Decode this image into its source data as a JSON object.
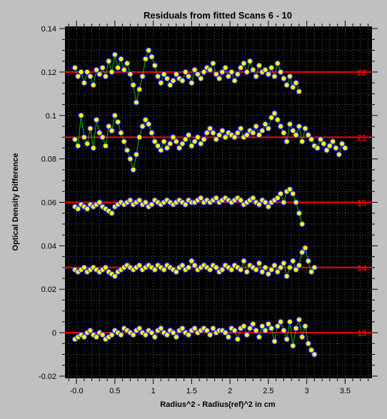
{
  "chart_data": {
    "type": "scatter",
    "title": "Residuals from fitted Scans 6 - 10",
    "xlabel": "Radius^2 - Radius(ref)^2 in cm",
    "ylabel": "Optical Density Difference",
    "xlim": [
      -0.15,
      3.85
    ],
    "ylim": [
      -0.021,
      0.141
    ],
    "x_ticks": [
      -0.0,
      0.5,
      1,
      1.5,
      2,
      2.5,
      3,
      3.5
    ],
    "x_tick_labels": [
      "-0.0",
      "0.5",
      "1",
      "1.5",
      "2",
      "2.5",
      "3",
      "3.5"
    ],
    "y_ticks": [
      -0.02,
      0,
      0.02,
      0.04,
      0.06,
      0.08,
      0.1,
      0.12,
      0.14
    ],
    "y_tick_labels": [
      "-0.02",
      "0",
      "0.02",
      "0.04",
      "0.06",
      "0.08",
      "0.1",
      "0.12",
      "0.14"
    ],
    "grid": true,
    "colors": {
      "background": "#000000",
      "frame": "#c0c0c0",
      "grid": "#9a9a9a",
      "baseline": "#ff0000",
      "label": "#e00000",
      "marker_fill": "#ffff00",
      "marker_edge": "#3030ff",
      "connector": "#00c000"
    },
    "series": [
      {
        "label": "13",
        "baseline": 0.0,
        "label_pos": [
          3.78,
          0.0
        ],
        "x": [
          -0.02,
          0.02,
          0.06,
          0.1,
          0.14,
          0.18,
          0.22,
          0.26,
          0.3,
          0.34,
          0.38,
          0.42,
          0.46,
          0.5,
          0.54,
          0.58,
          0.62,
          0.66,
          0.7,
          0.74,
          0.78,
          0.82,
          0.86,
          0.9,
          0.94,
          0.98,
          1.02,
          1.06,
          1.1,
          1.14,
          1.18,
          1.22,
          1.26,
          1.3,
          1.34,
          1.38,
          1.42,
          1.46,
          1.5,
          1.54,
          1.58,
          1.62,
          1.66,
          1.7,
          1.74,
          1.78,
          1.82,
          1.86,
          1.9,
          1.94,
          1.98,
          2.02,
          2.06,
          2.1,
          2.14,
          2.18,
          2.22,
          2.26,
          2.3,
          2.34,
          2.38,
          2.42,
          2.46,
          2.5,
          2.54,
          2.58,
          2.62,
          2.66,
          2.7,
          2.74,
          2.78,
          2.82,
          2.86,
          2.9,
          2.94,
          2.98,
          3.02,
          3.06,
          3.1
        ],
        "y": [
          -0.003,
          -0.002,
          -0.001,
          -0.002,
          0.0,
          0.001,
          -0.001,
          -0.002,
          0.0,
          -0.001,
          -0.003,
          -0.002,
          -0.001,
          0.001,
          0.0,
          -0.001,
          0.002,
          0.001,
          0.0,
          -0.001,
          0.001,
          0.002,
          0.0,
          -0.001,
          0.001,
          0.0,
          -0.002,
          0.001,
          0.002,
          0.0,
          -0.001,
          0.001,
          0.0,
          -0.002,
          0.001,
          0.002,
          0.0,
          -0.001,
          0.001,
          0.002,
          0.0,
          0.001,
          0.002,
          0.001,
          -0.001,
          0.002,
          0.0,
          0.001,
          0.001,
          0.0,
          -0.002,
          0.002,
          0.001,
          -0.003,
          0.002,
          0.003,
          -0.001,
          0.002,
          0.004,
          0.001,
          -0.002,
          0.003,
          0.001,
          0.004,
          0.002,
          -0.004,
          0.003,
          0.005,
          0.001,
          -0.003,
          0.005,
          -0.006,
          0.002,
          0.006,
          -0.002,
          0.003,
          -0.005,
          -0.008,
          -0.01
        ]
      },
      {
        "label": "14",
        "baseline": 0.03,
        "label_pos": [
          3.78,
          0.03
        ],
        "x": [
          -0.02,
          0.02,
          0.06,
          0.1,
          0.14,
          0.18,
          0.22,
          0.26,
          0.3,
          0.34,
          0.38,
          0.42,
          0.46,
          0.5,
          0.54,
          0.58,
          0.62,
          0.66,
          0.7,
          0.74,
          0.78,
          0.82,
          0.86,
          0.9,
          0.94,
          0.98,
          1.02,
          1.06,
          1.1,
          1.14,
          1.18,
          1.22,
          1.26,
          1.3,
          1.34,
          1.38,
          1.42,
          1.46,
          1.5,
          1.54,
          1.58,
          1.62,
          1.66,
          1.7,
          1.74,
          1.78,
          1.82,
          1.86,
          1.9,
          1.94,
          1.98,
          2.02,
          2.06,
          2.1,
          2.14,
          2.18,
          2.22,
          2.26,
          2.3,
          2.34,
          2.38,
          2.42,
          2.46,
          2.5,
          2.54,
          2.58,
          2.62,
          2.66,
          2.7,
          2.74,
          2.78,
          2.82,
          2.86,
          2.9,
          2.94,
          2.98,
          3.02,
          3.06,
          3.1
        ],
        "y": [
          0.029,
          0.028,
          0.029,
          0.03,
          0.028,
          0.029,
          0.03,
          0.029,
          0.028,
          0.029,
          0.03,
          0.028,
          0.027,
          0.026,
          0.028,
          0.029,
          0.03,
          0.031,
          0.03,
          0.029,
          0.03,
          0.031,
          0.029,
          0.03,
          0.031,
          0.03,
          0.029,
          0.031,
          0.03,
          0.029,
          0.031,
          0.03,
          0.029,
          0.028,
          0.03,
          0.031,
          0.029,
          0.03,
          0.033,
          0.031,
          0.029,
          0.03,
          0.031,
          0.03,
          0.029,
          0.031,
          0.03,
          0.028,
          0.029,
          0.031,
          0.03,
          0.029,
          0.031,
          0.03,
          0.029,
          0.033,
          0.028,
          0.031,
          0.03,
          0.029,
          0.032,
          0.028,
          0.03,
          0.027,
          0.029,
          0.031,
          0.028,
          0.03,
          0.032,
          0.026,
          0.03,
          0.033,
          0.029,
          0.031,
          0.037,
          0.039,
          0.033,
          0.028,
          0.03
        ]
      },
      {
        "label": "15",
        "baseline": 0.06,
        "label_pos": [
          3.78,
          0.06
        ],
        "x": [
          -0.02,
          0.02,
          0.06,
          0.1,
          0.14,
          0.18,
          0.22,
          0.26,
          0.3,
          0.34,
          0.38,
          0.42,
          0.46,
          0.5,
          0.54,
          0.58,
          0.62,
          0.66,
          0.7,
          0.74,
          0.78,
          0.82,
          0.86,
          0.9,
          0.94,
          0.98,
          1.02,
          1.06,
          1.1,
          1.14,
          1.18,
          1.22,
          1.26,
          1.3,
          1.34,
          1.38,
          1.42,
          1.46,
          1.5,
          1.54,
          1.58,
          1.62,
          1.66,
          1.7,
          1.74,
          1.78,
          1.82,
          1.86,
          1.9,
          1.94,
          1.98,
          2.02,
          2.06,
          2.1,
          2.14,
          2.18,
          2.22,
          2.26,
          2.3,
          2.34,
          2.38,
          2.42,
          2.46,
          2.5,
          2.54,
          2.58,
          2.62,
          2.66,
          2.7,
          2.74,
          2.78,
          2.82,
          2.86,
          2.9,
          2.94
        ],
        "y": [
          0.058,
          0.057,
          0.059,
          0.058,
          0.057,
          0.059,
          0.058,
          0.059,
          0.06,
          0.058,
          0.057,
          0.056,
          0.055,
          0.058,
          0.059,
          0.06,
          0.059,
          0.06,
          0.061,
          0.059,
          0.06,
          0.061,
          0.059,
          0.06,
          0.058,
          0.059,
          0.061,
          0.06,
          0.059,
          0.06,
          0.061,
          0.06,
          0.059,
          0.06,
          0.061,
          0.06,
          0.059,
          0.061,
          0.06,
          0.06,
          0.061,
          0.062,
          0.06,
          0.061,
          0.06,
          0.061,
          0.062,
          0.06,
          0.061,
          0.062,
          0.061,
          0.06,
          0.061,
          0.062,
          0.061,
          0.059,
          0.06,
          0.061,
          0.062,
          0.06,
          0.059,
          0.061,
          0.06,
          0.058,
          0.06,
          0.061,
          0.062,
          0.064,
          0.06,
          0.065,
          0.066,
          0.064,
          0.06,
          0.055,
          0.05
        ]
      },
      {
        "label": "21",
        "baseline": 0.09,
        "label_pos": [
          3.78,
          0.09
        ],
        "x": [
          -0.02,
          0.02,
          0.06,
          0.1,
          0.14,
          0.18,
          0.22,
          0.26,
          0.3,
          0.34,
          0.38,
          0.42,
          0.46,
          0.5,
          0.54,
          0.58,
          0.62,
          0.66,
          0.7,
          0.74,
          0.78,
          0.82,
          0.86,
          0.9,
          0.94,
          0.98,
          1.02,
          1.06,
          1.1,
          1.14,
          1.18,
          1.22,
          1.26,
          1.3,
          1.34,
          1.38,
          1.42,
          1.46,
          1.5,
          1.54,
          1.58,
          1.62,
          1.66,
          1.7,
          1.74,
          1.78,
          1.82,
          1.86,
          1.9,
          1.94,
          1.98,
          2.02,
          2.06,
          2.1,
          2.14,
          2.18,
          2.22,
          2.26,
          2.3,
          2.34,
          2.38,
          2.42,
          2.46,
          2.5,
          2.54,
          2.58,
          2.62,
          2.66,
          2.7,
          2.74,
          2.78,
          2.82,
          2.86,
          2.9,
          2.94,
          2.98,
          3.02,
          3.06,
          3.1,
          3.14,
          3.18,
          3.22,
          3.26,
          3.3,
          3.34,
          3.38,
          3.42,
          3.46,
          3.5
        ],
        "y": [
          0.089,
          0.086,
          0.1,
          0.09,
          0.087,
          0.094,
          0.085,
          0.098,
          0.092,
          0.09,
          0.086,
          0.095,
          0.093,
          0.1,
          0.097,
          0.092,
          0.088,
          0.084,
          0.08,
          0.075,
          0.082,
          0.09,
          0.095,
          0.098,
          0.096,
          0.092,
          0.088,
          0.086,
          0.084,
          0.088,
          0.085,
          0.087,
          0.09,
          0.088,
          0.085,
          0.087,
          0.089,
          0.091,
          0.086,
          0.088,
          0.09,
          0.087,
          0.089,
          0.092,
          0.094,
          0.092,
          0.089,
          0.091,
          0.093,
          0.09,
          0.092,
          0.091,
          0.09,
          0.092,
          0.094,
          0.09,
          0.091,
          0.093,
          0.092,
          0.095,
          0.091,
          0.093,
          0.096,
          0.094,
          0.099,
          0.101,
          0.098,
          0.095,
          0.092,
          0.088,
          0.096,
          0.093,
          0.091,
          0.095,
          0.088,
          0.094,
          0.091,
          0.089,
          0.086,
          0.085,
          0.089,
          0.087,
          0.084,
          0.086,
          0.088,
          0.085,
          0.082,
          0.087,
          0.085
        ]
      },
      {
        "label": "22",
        "baseline": 0.12,
        "label_pos": [
          3.78,
          0.12
        ],
        "x": [
          -0.02,
          0.02,
          0.06,
          0.1,
          0.14,
          0.18,
          0.22,
          0.26,
          0.3,
          0.34,
          0.38,
          0.42,
          0.46,
          0.5,
          0.54,
          0.58,
          0.62,
          0.66,
          0.7,
          0.74,
          0.78,
          0.82,
          0.86,
          0.9,
          0.94,
          0.98,
          1.02,
          1.06,
          1.1,
          1.14,
          1.18,
          1.22,
          1.26,
          1.3,
          1.34,
          1.38,
          1.42,
          1.46,
          1.5,
          1.54,
          1.58,
          1.62,
          1.66,
          1.7,
          1.74,
          1.78,
          1.82,
          1.86,
          1.9,
          1.94,
          1.98,
          2.02,
          2.06,
          2.1,
          2.14,
          2.18,
          2.22,
          2.26,
          2.3,
          2.34,
          2.38,
          2.42,
          2.46,
          2.5,
          2.54,
          2.58,
          2.62,
          2.66,
          2.7,
          2.74,
          2.78,
          2.82,
          2.86,
          2.9
        ],
        "y": [
          0.122,
          0.118,
          0.12,
          0.115,
          0.12,
          0.118,
          0.114,
          0.121,
          0.119,
          0.122,
          0.118,
          0.125,
          0.12,
          0.128,
          0.122,
          0.126,
          0.121,
          0.124,
          0.119,
          0.114,
          0.106,
          0.112,
          0.118,
          0.126,
          0.13,
          0.127,
          0.123,
          0.118,
          0.115,
          0.119,
          0.117,
          0.114,
          0.116,
          0.119,
          0.117,
          0.116,
          0.12,
          0.118,
          0.115,
          0.121,
          0.119,
          0.117,
          0.12,
          0.122,
          0.121,
          0.124,
          0.119,
          0.117,
          0.12,
          0.122,
          0.118,
          0.12,
          0.116,
          0.119,
          0.122,
          0.124,
          0.12,
          0.125,
          0.121,
          0.118,
          0.123,
          0.12,
          0.121,
          0.119,
          0.122,
          0.118,
          0.124,
          0.12,
          0.117,
          0.114,
          0.118,
          0.113,
          0.115,
          0.111
        ]
      }
    ]
  }
}
